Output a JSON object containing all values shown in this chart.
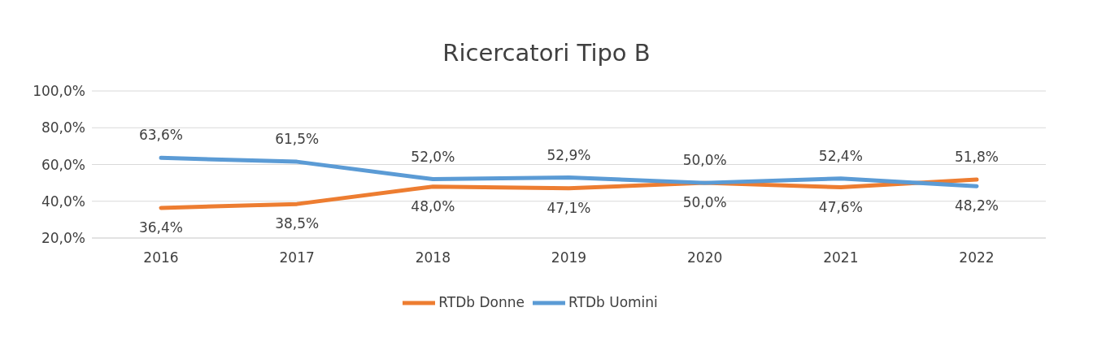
{
  "chart_data": {
    "type": "line",
    "title": "Ricercatori Tipo B",
    "categories": [
      "2016",
      "2017",
      "2018",
      "2019",
      "2020",
      "2021",
      "2022"
    ],
    "series": [
      {
        "name": "RTDb Donne",
        "color": "#ed7d31",
        "values": [
          36.4,
          38.5,
          48.0,
          47.1,
          50.0,
          47.6,
          51.8
        ],
        "value_labels": [
          "36,4%",
          "38,5%",
          "48,0%",
          "47,1%",
          "50,0%",
          "47,6%",
          "51,8%"
        ]
      },
      {
        "name": "RTDb Uomini",
        "color": "#5b9bd5",
        "values": [
          63.6,
          61.5,
          52.0,
          52.9,
          50.0,
          52.4,
          48.2
        ],
        "value_labels": [
          "63,6%",
          "61,5%",
          "52,0%",
          "52,9%",
          "50,0%",
          "52,4%",
          "48,2%"
        ]
      }
    ],
    "ylim": [
      20,
      100
    ],
    "yticks": [
      {
        "value": 20,
        "label": "20,0%"
      },
      {
        "value": 40,
        "label": "40,0%"
      },
      {
        "value": 60,
        "label": "60,0%"
      },
      {
        "value": 80,
        "label": "80,0%"
      },
      {
        "value": 100,
        "label": "100,0%"
      }
    ],
    "grid": "y",
    "legend": "bottom",
    "marker": "none",
    "line_style": "solid"
  }
}
